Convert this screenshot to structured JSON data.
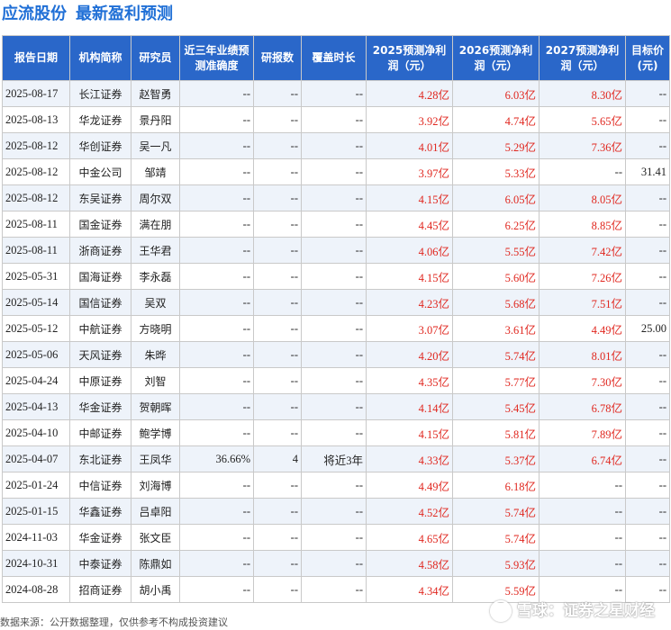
{
  "header": {
    "stock_name": "应流股份",
    "section_title": "最新盈利预测"
  },
  "table": {
    "columns": [
      "报告日期",
      "机构简称",
      "研究员",
      "近三年业绩预测准确度",
      "研报数",
      "覆盖时长",
      "2025预测净利润（元）",
      "2026预测净利润（元）",
      "2027预测净利润（元）",
      "目标价(元)"
    ],
    "rows": [
      {
        "date": "2025-08-17",
        "org": "长江证券",
        "analyst": "赵智勇",
        "accuracy": "--",
        "reports": "--",
        "coverage": "--",
        "p2025": "4.28亿",
        "p2026": "6.03亿",
        "p2027": "8.30亿",
        "target": "--"
      },
      {
        "date": "2025-08-13",
        "org": "华龙证券",
        "analyst": "景丹阳",
        "accuracy": "--",
        "reports": "--",
        "coverage": "--",
        "p2025": "3.92亿",
        "p2026": "4.74亿",
        "p2027": "5.65亿",
        "target": "--"
      },
      {
        "date": "2025-08-12",
        "org": "华创证券",
        "analyst": "吴一凡",
        "accuracy": "--",
        "reports": "--",
        "coverage": "--",
        "p2025": "4.01亿",
        "p2026": "5.29亿",
        "p2027": "7.36亿",
        "target": "--"
      },
      {
        "date": "2025-08-12",
        "org": "中金公司",
        "analyst": "邹靖",
        "accuracy": "--",
        "reports": "--",
        "coverage": "--",
        "p2025": "3.97亿",
        "p2026": "5.33亿",
        "p2027": "--",
        "target": "31.41"
      },
      {
        "date": "2025-08-12",
        "org": "东吴证券",
        "analyst": "周尔双",
        "accuracy": "--",
        "reports": "--",
        "coverage": "--",
        "p2025": "4.15亿",
        "p2026": "6.05亿",
        "p2027": "8.05亿",
        "target": "--"
      },
      {
        "date": "2025-08-11",
        "org": "国金证券",
        "analyst": "满在朋",
        "accuracy": "--",
        "reports": "--",
        "coverage": "--",
        "p2025": "4.45亿",
        "p2026": "6.25亿",
        "p2027": "8.85亿",
        "target": "--"
      },
      {
        "date": "2025-08-11",
        "org": "浙商证券",
        "analyst": "王华君",
        "accuracy": "--",
        "reports": "--",
        "coverage": "--",
        "p2025": "4.06亿",
        "p2026": "5.55亿",
        "p2027": "7.42亿",
        "target": "--"
      },
      {
        "date": "2025-05-31",
        "org": "国海证券",
        "analyst": "李永磊",
        "accuracy": "--",
        "reports": "--",
        "coverage": "--",
        "p2025": "4.15亿",
        "p2026": "5.60亿",
        "p2027": "7.26亿",
        "target": "--"
      },
      {
        "date": "2025-05-14",
        "org": "国信证券",
        "analyst": "吴双",
        "accuracy": "--",
        "reports": "--",
        "coverage": "--",
        "p2025": "4.23亿",
        "p2026": "5.68亿",
        "p2027": "7.51亿",
        "target": "--"
      },
      {
        "date": "2025-05-12",
        "org": "中航证券",
        "analyst": "方晓明",
        "accuracy": "--",
        "reports": "--",
        "coverage": "--",
        "p2025": "3.07亿",
        "p2026": "3.61亿",
        "p2027": "4.49亿",
        "target": "25.00"
      },
      {
        "date": "2025-05-06",
        "org": "天风证券",
        "analyst": "朱晔",
        "accuracy": "--",
        "reports": "--",
        "coverage": "--",
        "p2025": "4.20亿",
        "p2026": "5.74亿",
        "p2027": "8.01亿",
        "target": "--"
      },
      {
        "date": "2025-04-24",
        "org": "中原证券",
        "analyst": "刘智",
        "accuracy": "--",
        "reports": "--",
        "coverage": "--",
        "p2025": "4.35亿",
        "p2026": "5.77亿",
        "p2027": "7.30亿",
        "target": "--"
      },
      {
        "date": "2025-04-13",
        "org": "华金证券",
        "analyst": "贺朝晖",
        "accuracy": "--",
        "reports": "--",
        "coverage": "--",
        "p2025": "4.14亿",
        "p2026": "5.45亿",
        "p2027": "6.78亿",
        "target": "--"
      },
      {
        "date": "2025-04-10",
        "org": "中邮证券",
        "analyst": "鲍学博",
        "accuracy": "--",
        "reports": "--",
        "coverage": "--",
        "p2025": "4.15亿",
        "p2026": "5.81亿",
        "p2027": "7.89亿",
        "target": "--"
      },
      {
        "date": "2025-04-07",
        "org": "东北证券",
        "analyst": "王凤华",
        "accuracy": "36.66%",
        "reports": "4",
        "coverage": "将近3年",
        "p2025": "4.33亿",
        "p2026": "5.37亿",
        "p2027": "6.74亿",
        "target": "--"
      },
      {
        "date": "2025-01-24",
        "org": "中信证券",
        "analyst": "刘海博",
        "accuracy": "--",
        "reports": "--",
        "coverage": "--",
        "p2025": "4.49亿",
        "p2026": "6.18亿",
        "p2027": "--",
        "target": "--"
      },
      {
        "date": "2025-01-15",
        "org": "华鑫证券",
        "analyst": "吕卓阳",
        "accuracy": "--",
        "reports": "--",
        "coverage": "--",
        "p2025": "4.52亿",
        "p2026": "5.74亿",
        "p2027": "--",
        "target": "--"
      },
      {
        "date": "2024-11-03",
        "org": "华金证券",
        "analyst": "张文臣",
        "accuracy": "--",
        "reports": "--",
        "coverage": "--",
        "p2025": "4.65亿",
        "p2026": "5.74亿",
        "p2027": "--",
        "target": "--"
      },
      {
        "date": "2024-10-31",
        "org": "中泰证券",
        "analyst": "陈鼎如",
        "accuracy": "--",
        "reports": "--",
        "coverage": "--",
        "p2025": "4.58亿",
        "p2026": "5.93亿",
        "p2027": "--",
        "target": "--"
      },
      {
        "date": "2024-08-28",
        "org": "招商证券",
        "analyst": "胡小禹",
        "accuracy": "--",
        "reports": "--",
        "coverage": "--",
        "p2025": "4.34亿",
        "p2026": "5.59亿",
        "p2027": "--",
        "target": "--"
      }
    ]
  },
  "footer": {
    "source": "数据来源：公开数据整理，仅供参考不构成投资建议"
  },
  "watermark": {
    "text": "雪球：证券之星财经",
    "background_text": "证券之星"
  },
  "colors": {
    "header_bg": "#2a67c9",
    "title": "#1f6fd6",
    "profit_red": "#e0271f",
    "row_alt": "#eef3fa"
  }
}
